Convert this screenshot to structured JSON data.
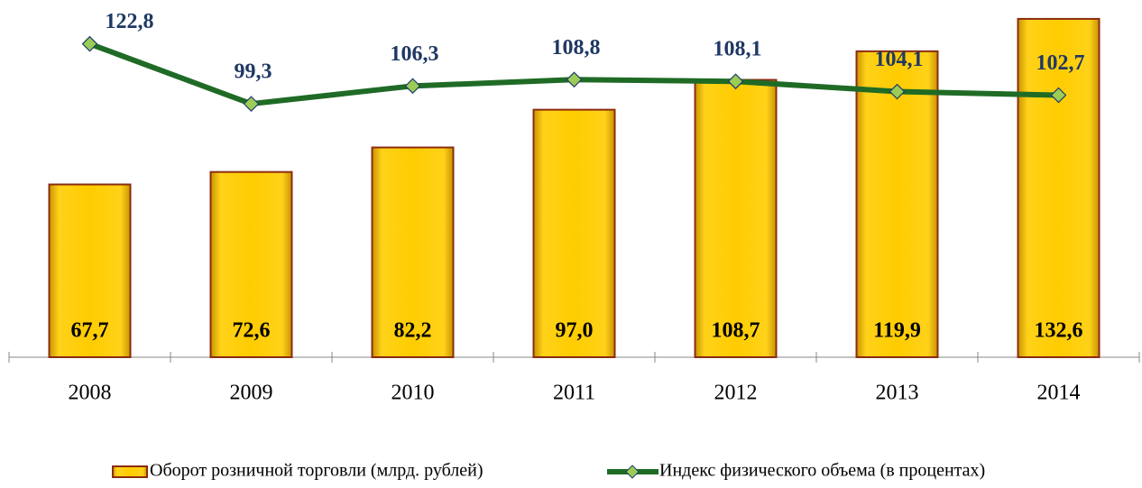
{
  "chart_data": {
    "type": "bar-line",
    "categories": [
      "2008",
      "2009",
      "2010",
      "2011",
      "2012",
      "2013",
      "2014"
    ],
    "series": [
      {
        "name": "Оборот розничной торговли (млрд. рублей)",
        "type": "bar",
        "color": "#ffcc00",
        "values": [
          67.7,
          72.6,
          82.2,
          97.0,
          108.7,
          119.9,
          132.6
        ],
        "value_labels": [
          "67,7",
          "72,6",
          "82,2",
          "97,0",
          "108,7",
          "119,9",
          "132,6"
        ]
      },
      {
        "name": "Индекс физического объема (в процентах)",
        "type": "line",
        "axis": "y2",
        "color": "#1f6b26",
        "values": [
          122.8,
          99.3,
          106.3,
          108.8,
          108.1,
          104.1,
          102.7
        ],
        "value_labels": [
          "122,8",
          "99,3",
          "106,3",
          "108,8",
          "108,1",
          "104,1",
          "102,7"
        ]
      }
    ],
    "ylim": [
      0,
      140
    ],
    "y2lim": [
      0,
      140
    ],
    "legend": "bottom"
  }
}
